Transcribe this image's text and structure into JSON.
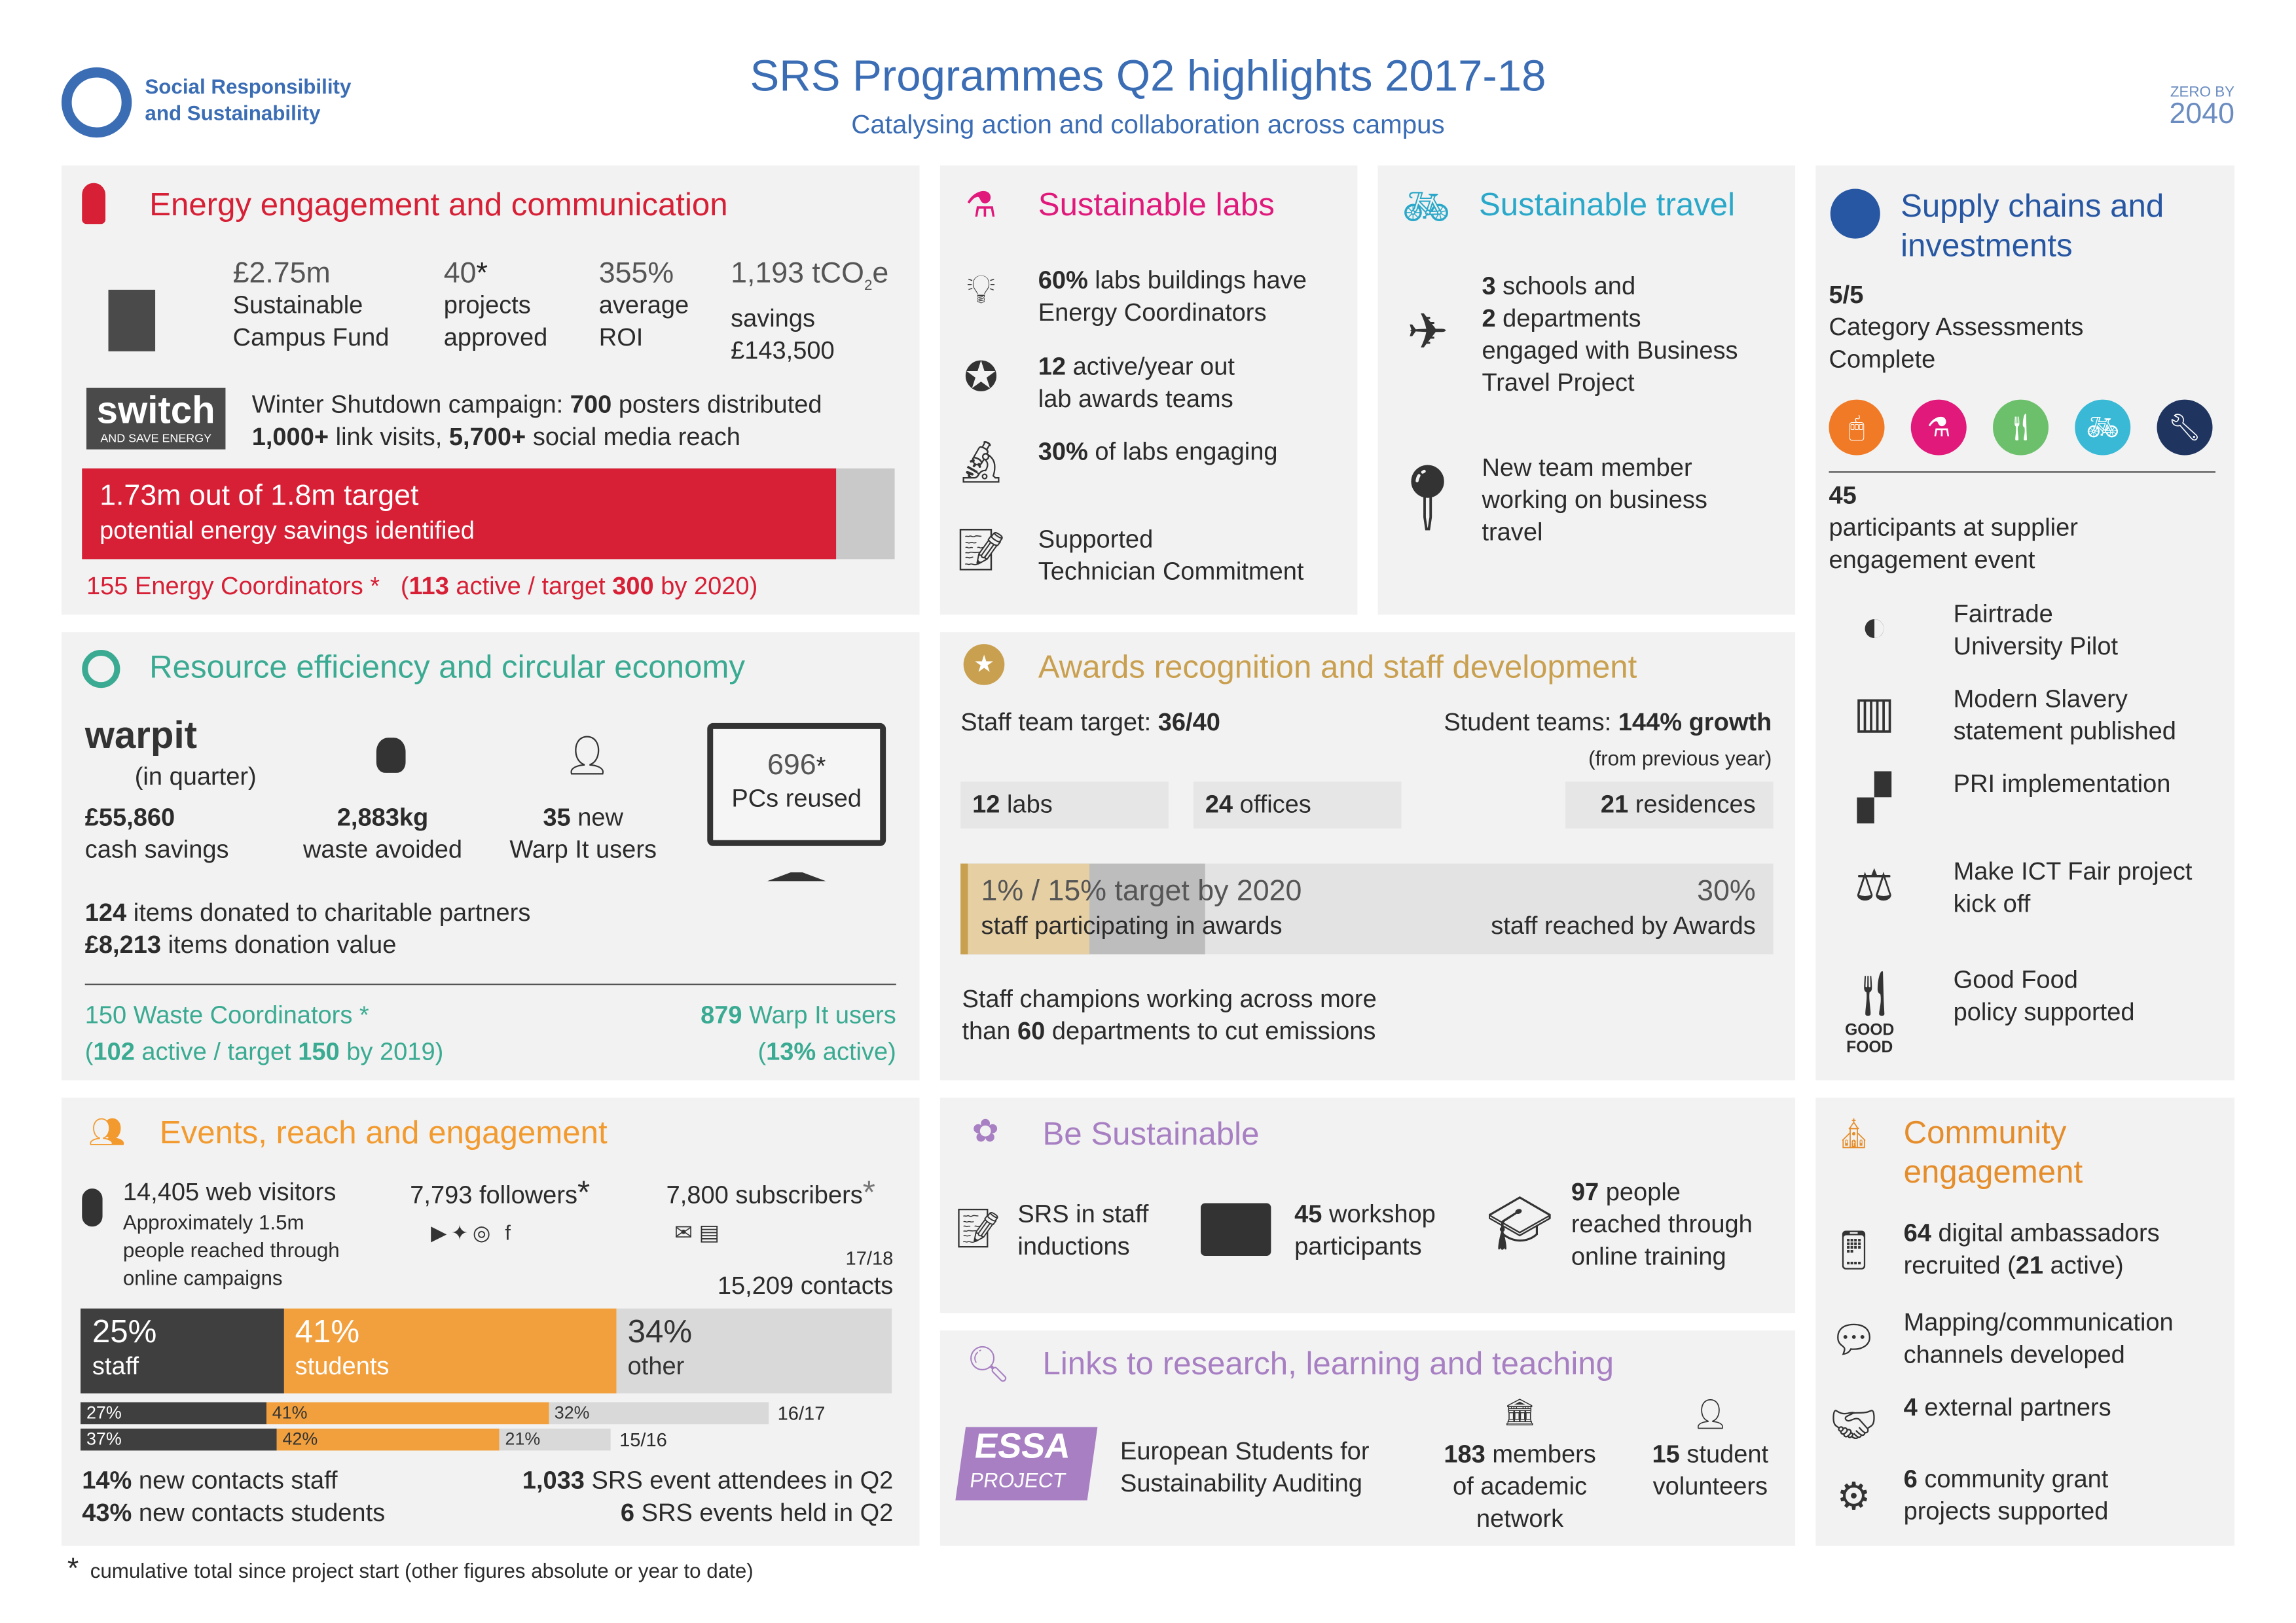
{
  "header": {
    "org_name_1": "Social Responsibility",
    "org_name_2": "and Sustainability",
    "title": "SRS Programmes Q2 highlights 2017-18",
    "subtitle": "Catalysing action and collaboration across campus",
    "zero_logo_1": "ZERO BY",
    "zero_logo_2": "2040"
  },
  "colors": {
    "energy": "#d71f35",
    "resource": "#3aab92",
    "labs": "#e0197b",
    "travel": "#2aa8c9",
    "supply": "#2757a3",
    "awards": "#c9a050",
    "events": "#f29a2e",
    "purple": "#a77fc2",
    "community": "#e58d2a"
  },
  "energy": {
    "title": "Energy engagement and communication",
    "stats": [
      {
        "value": "£2.75m",
        "l1": "Sustainable",
        "l2": "Campus Fund"
      },
      {
        "value": "40",
        "star": "*",
        "l1": "projects",
        "l2": "approved"
      },
      {
        "value": "355%",
        "l1": "average",
        "l2": "ROI"
      },
      {
        "value": "1,193 tCO",
        "sub": "2",
        "suffix": "e",
        "l1": "savings",
        "l2": "£143,500"
      }
    ],
    "switch_logo": "switch",
    "switch_tag": "AND SAVE ENERGY",
    "campaign_1a": "Winter Shutdown campaign: ",
    "campaign_1b": "700",
    "campaign_1c": " posters distributed",
    "campaign_2a": "1,000+",
    "campaign_2b": " link visits, ",
    "campaign_2c": "5,700+",
    "campaign_2d": " social media reach",
    "progress": {
      "value": 1.73,
      "target": 1.8,
      "line1": "1.73m out of 1.8m target",
      "line2": "potential energy savings identified"
    },
    "coord_a": "155",
    "coord_b": " Energy Coordinators ",
    "coord_star": "*",
    "coord_c": "(",
    "coord_d": "113",
    "coord_e": " active / target ",
    "coord_f": "300",
    "coord_g": " by 2020)"
  },
  "labs": {
    "title": "Sustainable labs",
    "items": [
      {
        "icon": "lightbulb-icon",
        "bold": "60%",
        "text": " labs buildings have",
        "l2": "Energy Coordinators"
      },
      {
        "icon": "award-badge-icon",
        "bold": "12",
        "text": " active/year out",
        "l2": "lab awards teams"
      },
      {
        "icon": "microscope-icon",
        "bold": "30%",
        "text": " of labs engaging",
        "l2": ""
      },
      {
        "icon": "document-pen-icon",
        "bold": "",
        "text": "Supported",
        "l2": "Technician Commitment"
      }
    ]
  },
  "travel": {
    "title": "Sustainable travel",
    "i1_b1": "3",
    "i1_t1": " schools and",
    "i1_b2": "2",
    "i1_t2": " departments",
    "i1_l3": "engaged with Business",
    "i1_l4": "Travel Project",
    "i2_l1": "New team member",
    "i2_l2": "working on business",
    "i2_l3": "travel"
  },
  "supply": {
    "title_1": "Supply chains and",
    "title_2": "investments",
    "cat_b": "5/5",
    "cat_l1": "Category Assessments",
    "cat_l2": "Complete",
    "circles": [
      {
        "icon": "mouse-icon",
        "color": "#f07a26"
      },
      {
        "icon": "flask-icon",
        "color": "#e0197b"
      },
      {
        "icon": "cutlery-icon",
        "color": "#6cc06c"
      },
      {
        "icon": "bicycle-icon",
        "color": "#39b9d6"
      },
      {
        "icon": "wrench-icon",
        "color": "#1f3560"
      }
    ],
    "part_b": "45",
    "part_l1": "participants at supplier",
    "part_l2": "engagement event",
    "items": [
      {
        "icon": "fairtrade-icon",
        "l1": "Fairtrade",
        "l2": "University Pilot"
      },
      {
        "icon": "barcode-icon",
        "l1": "Modern Slavery",
        "l2": "statement published"
      },
      {
        "icon": "blocks-icon",
        "l1": "PRI implementation",
        "l2": ""
      },
      {
        "icon": "seesaw-icon",
        "l1": "Make ICT Fair project",
        "l2": "kick off"
      },
      {
        "icon": "good-food-icon",
        "l1": "Good Food",
        "l2": "policy supported"
      }
    ],
    "good_food_1": "GOOD",
    "good_food_2": "FOOD"
  },
  "resource": {
    "title": "Resource efficiency and circular economy",
    "warp_logo": "warpit",
    "warp_sub": "(in quarter)",
    "stats": [
      {
        "bold": "£55,860",
        "l2": "cash savings"
      },
      {
        "bold": "2,883kg",
        "l2": "waste avoided"
      },
      {
        "bold": "35",
        "t": " new",
        "l2": "Warp It users"
      }
    ],
    "pcs_value": "696",
    "pcs_star": "*",
    "pcs_label": "PCs reused",
    "don_b1": "124",
    "don_t1": " items donated to charitable partners",
    "don_b2": "£8,213",
    "don_t2": " items donation value",
    "wc_b": "150",
    "wc_t": " Waste Coordinators ",
    "wc_star": "*",
    "wc2_a": "(",
    "wc2_b": "102",
    "wc2_c": " active / target ",
    "wc2_d": "150",
    "wc2_e": " by 2019)",
    "wu_b": "879",
    "wu_t": " Warp It users",
    "wu2_a": "(",
    "wu2_b": "13%",
    "wu2_c": " active)"
  },
  "awards": {
    "title": "Awards recognition and staff development",
    "staff_t": "Staff team target: ",
    "staff_b": "36/40",
    "student_t": "Student teams: ",
    "student_b": "144% growth",
    "student_sub": "(from previous year)",
    "boxes": [
      {
        "b": "12",
        "t": " labs"
      },
      {
        "b": "24",
        "t": " offices"
      },
      {
        "b": "21",
        "t": " residences"
      }
    ],
    "bar": {
      "participating": 1,
      "target": 15,
      "reached": 30,
      "l1": "1% / 15% target by 2020",
      "l2": "staff participating in awards",
      "r1": "30%",
      "r2": "staff reached by Awards"
    },
    "champ_1": "Staff champions working across more",
    "champ_2a": "than ",
    "champ_2b": "60",
    "champ_2c": " departments to cut emissions"
  },
  "events": {
    "title": "Events, reach and engagement",
    "web_l1": "14,405 web visitors",
    "web_l2": "Approximately 1.5m",
    "web_l3": "people reached through",
    "web_l4": "online campaigns",
    "followers": "7,793 followers",
    "followers_star": "*",
    "subscribers": "7,800 subscribers",
    "subscribers_star": "*",
    "contacts_year": "17/18",
    "contacts": "15,209 contacts",
    "main_bar": [
      {
        "pct": 25,
        "label": "staff",
        "color": "#403f3f"
      },
      {
        "pct": 41,
        "label": "students",
        "color": "#f2a03d"
      },
      {
        "pct": 34,
        "label": "other",
        "color": "#d9d9d9"
      }
    ],
    "history": [
      {
        "year": "16/17",
        "values": [
          27,
          41,
          32
        ]
      },
      {
        "year": "15/16",
        "values": [
          37,
          42,
          21
        ]
      }
    ],
    "nc1_b": "14%",
    "nc1_t": " new contacts staff",
    "nc2_b": "43%",
    "nc2_t": " new contacts students",
    "att_b": "1,033",
    "att_t": " SRS event attendees in Q2",
    "ev_b": "6",
    "ev_t": " SRS events held in Q2"
  },
  "be": {
    "title": "Be Sustainable",
    "i1_l1": "SRS in staff",
    "i1_l2": "inductions",
    "i2_b": "45",
    "i2_t": " workshop",
    "i2_l2": "participants",
    "i3_b": "97",
    "i3_t": " people",
    "i3_l2": "reached through",
    "i3_l3": "online training"
  },
  "links": {
    "title": "Links to research, learning and teaching",
    "essa_1": "ESSA",
    "essa_2": "PROJECT",
    "essa_l1": "European Students for",
    "essa_l2": "Sustainability Auditing",
    "m_b": "183",
    "m_t": " members",
    "m_l2": "of academic",
    "m_l3": "network",
    "v_b": "15",
    "v_t": " student",
    "v_l2": "volunteers"
  },
  "community": {
    "title_1": "Community",
    "title_2": "engagement",
    "items": [
      {
        "icon": "mobile-phone-icon",
        "b": "64",
        "t": " digital ambassadors",
        "l2a": "recruited (",
        "l2b": "21",
        "l2c": " active)"
      },
      {
        "icon": "speech-bubble-icon",
        "b": "",
        "t": "Mapping/communication",
        "l2a": "channels developed",
        "l2b": "",
        "l2c": ""
      },
      {
        "icon": "handshake-icon",
        "b": "4",
        "t": " external partners",
        "l2a": "",
        "l2b": "",
        "l2c": ""
      },
      {
        "icon": "gear-icon",
        "b": "6",
        "t": " community grant",
        "l2a": "projects supported",
        "l2b": "",
        "l2c": ""
      }
    ]
  },
  "footnote": {
    "star": "*",
    "text": "cumulative total since project start (other figures absolute or year to date)"
  }
}
